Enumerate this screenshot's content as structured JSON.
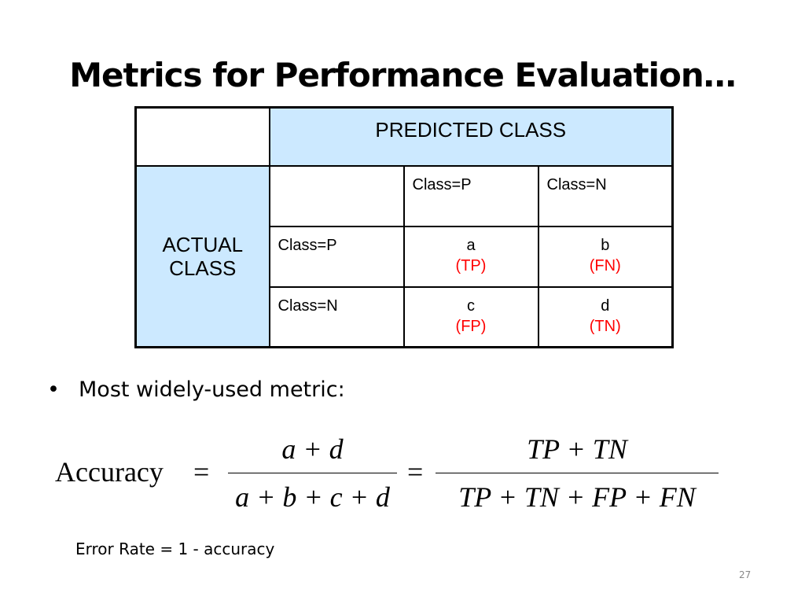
{
  "title": "Metrics for Performance Evaluation…",
  "matrix": {
    "predicted_header": "PREDICTED CLASS",
    "actual_header_line1": "ACTUAL",
    "actual_header_line2": "CLASS",
    "col_labels": [
      "Class=P",
      "Class=N"
    ],
    "row_labels": [
      "Class=P",
      "Class=N"
    ],
    "cells": [
      [
        {
          "letter": "a",
          "tag": "(TP)"
        },
        {
          "letter": "b",
          "tag": "(FN)"
        }
      ],
      [
        {
          "letter": "c",
          "tag": "(FP)"
        },
        {
          "letter": "d",
          "tag": "(TN)"
        }
      ]
    ],
    "colors": {
      "header_fill": "#cce9ff",
      "tag_color": "#ff0000"
    }
  },
  "bullet": {
    "symbol": "•",
    "text": "Most widely-used metric:"
  },
  "formula": {
    "lhs": "Accuracy",
    "equals": "=",
    "frac1_num": "a + d",
    "frac1_den": "a + b + c + d",
    "frac2_num": "TP + TN",
    "frac2_den": "TP + TN + FP + FN"
  },
  "error_rate": "Error Rate = 1 - accuracy",
  "page_number": "27"
}
